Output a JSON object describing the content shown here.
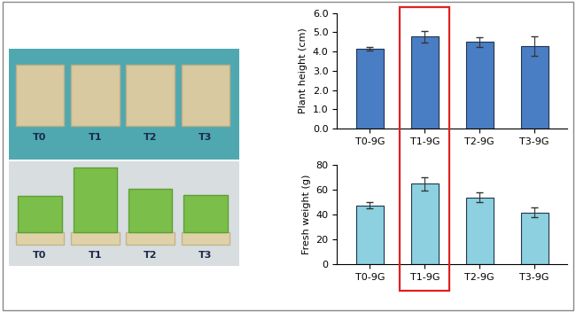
{
  "chart_data": [
    {
      "type": "bar",
      "y_label": "Plant height (cm)",
      "categories": [
        "T0-9G",
        "T1-9G",
        "T2-9G",
        "T3-9G"
      ],
      "values": [
        4.15,
        4.78,
        4.5,
        4.3
      ],
      "errors": [
        0.1,
        0.3,
        0.25,
        0.5
      ],
      "color": "#4a7ec4",
      "ylim": [
        0,
        6
      ],
      "yticks": [
        {
          "value": 0,
          "label": "0.0"
        },
        {
          "value": 1,
          "label": "1.0"
        },
        {
          "value": 2,
          "label": "2.0"
        },
        {
          "value": 3,
          "label": "3.0"
        },
        {
          "value": 4,
          "label": "4.0"
        },
        {
          "value": 5,
          "label": "5.0"
        },
        {
          "value": 6,
          "label": "6.0"
        }
      ]
    },
    {
      "type": "bar",
      "y_label": "Fresh weight (g)",
      "categories": [
        "T0-9G",
        "T1-9G",
        "T2-9G",
        "T3-9G"
      ],
      "values": [
        47,
        64.5,
        53.5,
        41.5
      ],
      "errors": [
        2.5,
        5.5,
        4,
        4
      ],
      "color": "#8dd0e0",
      "ylim": [
        0,
        80
      ],
      "yticks": [
        0,
        20,
        40,
        60,
        80
      ]
    }
  ],
  "photos": {
    "labels": [
      "T0",
      "T1",
      "T2",
      "T3"
    ]
  }
}
